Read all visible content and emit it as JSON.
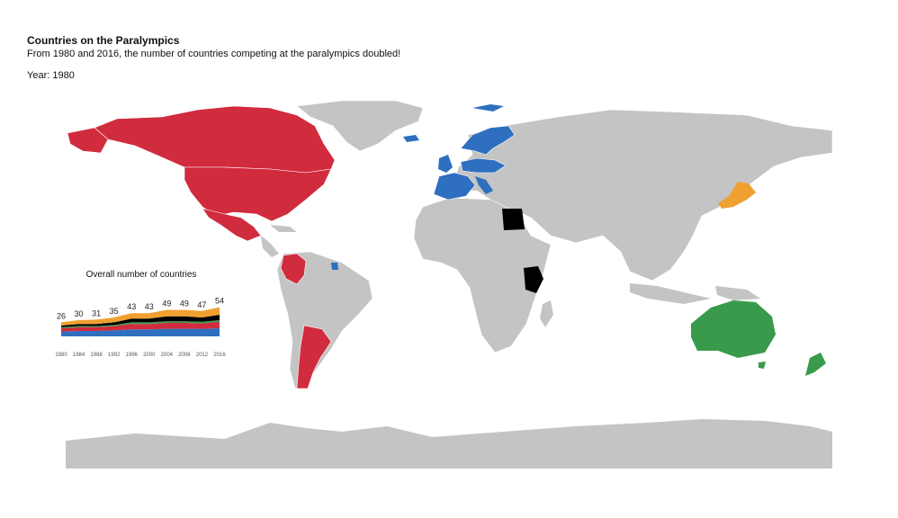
{
  "header": {
    "title": "Countries on the Paralympics",
    "subtitle": "From 1980 and 2016, the number of countries competing at the paralympics doubled!",
    "year_label": "Year: 1980"
  },
  "colors": {
    "land": "#c4c4c4",
    "border": "#ffffff",
    "americas": "#d12b3e",
    "europe": "#2e6fbf",
    "asia": "#f0a030",
    "africa": "#000000",
    "oceania": "#3a9a4c"
  },
  "map": {
    "highlighted_countries": [
      {
        "name": "USA",
        "group": "americas"
      },
      {
        "name": "Canada",
        "group": "americas"
      },
      {
        "name": "Mexico",
        "group": "americas"
      },
      {
        "name": "Colombia",
        "group": "americas"
      },
      {
        "name": "Argentina",
        "group": "americas"
      },
      {
        "name": "Great Britain",
        "group": "europe"
      },
      {
        "name": "France",
        "group": "europe"
      },
      {
        "name": "Germany",
        "group": "europe"
      },
      {
        "name": "Poland",
        "group": "europe"
      },
      {
        "name": "Sweden",
        "group": "europe"
      },
      {
        "name": "Norway",
        "group": "europe"
      },
      {
        "name": "Finland",
        "group": "europe"
      },
      {
        "name": "Iceland",
        "group": "europe"
      },
      {
        "name": "Italy",
        "group": "europe"
      },
      {
        "name": "Spain",
        "group": "europe"
      },
      {
        "name": "Japan",
        "group": "asia"
      },
      {
        "name": "Egypt",
        "group": "africa"
      },
      {
        "name": "Kenya",
        "group": "africa"
      },
      {
        "name": "Australia",
        "group": "oceania"
      },
      {
        "name": "New Zealand",
        "group": "oceania"
      }
    ]
  },
  "chart_data": {
    "type": "area",
    "title": "Overall number of countries",
    "x": [
      "1980",
      "1984",
      "1988",
      "1992",
      "1996",
      "2000",
      "2004",
      "2008",
      "2012",
      "2016"
    ],
    "totals": [
      26,
      30,
      31,
      35,
      43,
      43,
      49,
      49,
      47,
      54
    ],
    "series": [
      {
        "color": "#2e6fbf",
        "values": [
          9,
          10,
          10,
          11,
          13,
          13,
          14,
          14,
          14,
          15
        ]
      },
      {
        "color": "#d12b3e",
        "values": [
          6,
          7,
          7,
          8,
          10,
          10,
          11,
          11,
          10,
          12
        ]
      },
      {
        "color": "#3a9a4c",
        "values": [
          2,
          2,
          2,
          2,
          3,
          3,
          3,
          3,
          3,
          3
        ]
      },
      {
        "color": "#000000",
        "values": [
          3,
          4,
          4,
          5,
          7,
          7,
          9,
          9,
          8,
          10
        ]
      },
      {
        "color": "#f0a030",
        "values": [
          6,
          7,
          8,
          9,
          10,
          10,
          12,
          12,
          12,
          14
        ]
      }
    ]
  }
}
